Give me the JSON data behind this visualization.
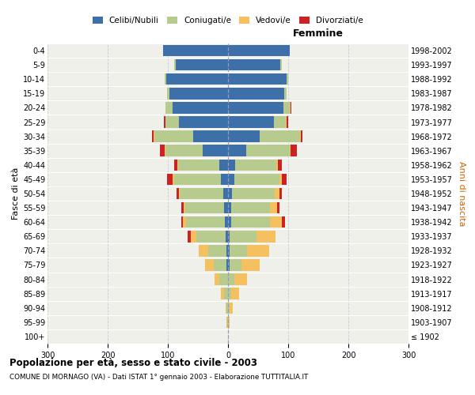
{
  "age_groups": [
    "100+",
    "95-99",
    "90-94",
    "85-89",
    "80-84",
    "75-79",
    "70-74",
    "65-69",
    "60-64",
    "55-59",
    "50-54",
    "45-49",
    "40-44",
    "35-39",
    "30-34",
    "25-29",
    "20-24",
    "15-19",
    "10-14",
    "5-9",
    "0-4"
  ],
  "birth_years": [
    "≤ 1902",
    "1903-1907",
    "1908-1912",
    "1913-1917",
    "1918-1922",
    "1923-1927",
    "1928-1932",
    "1933-1937",
    "1938-1942",
    "1943-1947",
    "1948-1952",
    "1953-1957",
    "1958-1962",
    "1963-1967",
    "1968-1972",
    "1973-1977",
    "1978-1982",
    "1983-1987",
    "1988-1992",
    "1993-1997",
    "1998-2002"
  ],
  "male": {
    "celibi": [
      0,
      0,
      0,
      0,
      0,
      2,
      3,
      4,
      5,
      6,
      8,
      12,
      15,
      42,
      58,
      82,
      92,
      97,
      102,
      87,
      108
    ],
    "coniugati": [
      0,
      1,
      2,
      6,
      14,
      22,
      30,
      48,
      65,
      65,
      72,
      78,
      68,
      62,
      65,
      22,
      12,
      4,
      3,
      2,
      0
    ],
    "vedovi": [
      0,
      1,
      2,
      6,
      8,
      14,
      16,
      10,
      5,
      3,
      2,
      2,
      1,
      1,
      1,
      0,
      0,
      0,
      0,
      0,
      0
    ],
    "divorziati": [
      0,
      0,
      0,
      0,
      0,
      0,
      0,
      5,
      2,
      4,
      4,
      9,
      6,
      8,
      2,
      2,
      0,
      0,
      0,
      0,
      0
    ]
  },
  "female": {
    "nubili": [
      0,
      0,
      0,
      0,
      0,
      2,
      2,
      3,
      5,
      5,
      7,
      10,
      12,
      30,
      52,
      76,
      92,
      93,
      97,
      87,
      102
    ],
    "coniugate": [
      0,
      1,
      3,
      5,
      10,
      20,
      30,
      44,
      65,
      65,
      70,
      75,
      68,
      72,
      68,
      20,
      12,
      5,
      3,
      2,
      0
    ],
    "vedove": [
      0,
      2,
      5,
      14,
      22,
      30,
      36,
      32,
      20,
      12,
      8,
      5,
      3,
      2,
      1,
      1,
      0,
      0,
      0,
      0,
      0
    ],
    "divorziate": [
      0,
      0,
      0,
      0,
      0,
      0,
      0,
      0,
      5,
      3,
      4,
      8,
      6,
      10,
      3,
      3,
      1,
      0,
      0,
      0,
      0
    ]
  },
  "colors": {
    "celibi": "#3d6fa8",
    "coniugati": "#b8cb8e",
    "vedovi": "#f5c160",
    "divorziati": "#cc2222"
  },
  "legend_labels": [
    "Celibi/Nubili",
    "Coniugati/e",
    "Vedovi/e",
    "Divorziati/e"
  ],
  "title": "Popolazione per età, sesso e stato civile - 2003",
  "subtitle": "COMUNE DI MORNAGO (VA) - Dati ISTAT 1° gennaio 2003 - Elaborazione TUTTITALIA.IT",
  "label_femmine": "Femmine",
  "ylabel_left": "Fasce di età",
  "ylabel_right": "Anni di nascita",
  "xlim": 300,
  "bg_outer": "#ffffff",
  "bg_inner": "#f0f0eb",
  "grid_color": "#cccccc"
}
